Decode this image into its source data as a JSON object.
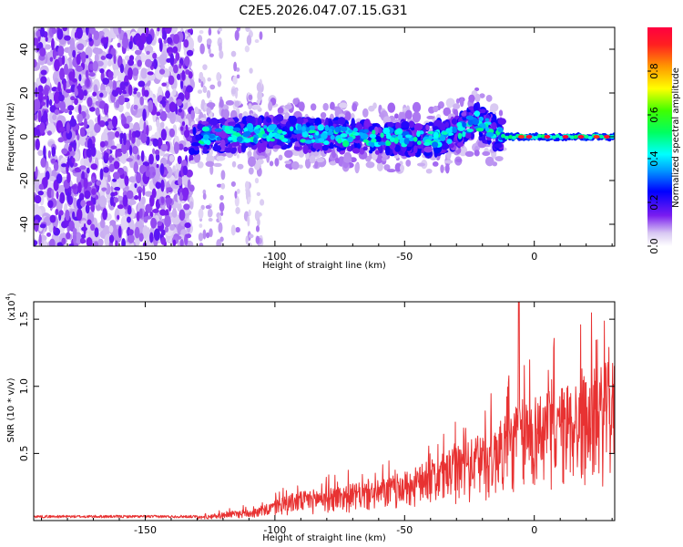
{
  "title": "C2E5.2026.047.07.15.G31",
  "chart_data": [
    {
      "type": "heatmap",
      "xlabel": "Height of straight line (km)",
      "ylabel": "Frequency (Hz)",
      "xlim": [
        -193,
        31
      ],
      "ylim": [
        -50,
        50
      ],
      "x_ticks": [
        -150,
        -100,
        -50,
        0
      ],
      "x_tick_labels": [
        "-150",
        "-100",
        "-50",
        "0"
      ],
      "y_ticks": [
        -40,
        -20,
        0,
        20,
        40
      ],
      "y_tick_labels": [
        "-40",
        "-20",
        "0",
        "20",
        "40"
      ],
      "colorbar": {
        "label": "Normalized spectral amplitude",
        "range": [
          0,
          1
        ],
        "ticks": [
          0,
          0.2,
          0.4,
          0.6,
          0.8
        ],
        "tick_labels": [
          "0.0",
          "0.2",
          "0.4",
          "0.6",
          "0.8"
        ],
        "colormap": "rainbow (white-violet-blue-cyan-green-yellow-orange-red)"
      },
      "signal_track": [
        {
          "x": -130,
          "y": 0
        },
        {
          "x": -100,
          "y": 2
        },
        {
          "x": -70,
          "y": 0
        },
        {
          "x": -40,
          "y": -1
        },
        {
          "x": -30,
          "y": 1
        },
        {
          "x": -23,
          "y": 8
        },
        {
          "x": -15,
          "y": 2
        },
        {
          "x": -10,
          "y": 0
        },
        {
          "x": 30,
          "y": 0
        }
      ],
      "grid": false
    },
    {
      "type": "line",
      "xlabel": "Height of straight line (km)",
      "ylabel": "SNR (10 * v/v)",
      "multiplier_label": "(x10",
      "multiplier_exp": "4",
      "multiplier_close": ")",
      "xlim": [
        -193,
        31
      ],
      "ylim": [
        0,
        1.63
      ],
      "x_ticks": [
        -150,
        -100,
        -50,
        0
      ],
      "x_tick_labels": [
        "-150",
        "-100",
        "-50",
        "0"
      ],
      "y_ticks": [
        0.5,
        1.0,
        1.5
      ],
      "y_tick_labels": [
        "0.5",
        "1.0",
        "1.5"
      ],
      "series_color": "#e83232",
      "envelope": [
        {
          "x": -193,
          "y": 0.03
        },
        {
          "x": -130,
          "y": 0.03
        },
        {
          "x": -120,
          "y": 0.06
        },
        {
          "x": -105,
          "y": 0.1
        },
        {
          "x": -95,
          "y": 0.2
        },
        {
          "x": -80,
          "y": 0.25
        },
        {
          "x": -60,
          "y": 0.3
        },
        {
          "x": -45,
          "y": 0.4
        },
        {
          "x": -35,
          "y": 0.5
        },
        {
          "x": -25,
          "y": 0.6
        },
        {
          "x": -15,
          "y": 0.7
        },
        {
          "x": -8,
          "y": 0.85
        },
        {
          "x": -5,
          "y": 0.9
        },
        {
          "x": 0,
          "y": 0.95
        },
        {
          "x": 10,
          "y": 1.0
        },
        {
          "x": 20,
          "y": 1.1
        },
        {
          "x": 30,
          "y": 1.2
        }
      ],
      "peak": {
        "x": -6,
        "y": 1.63
      },
      "grid": false
    }
  ]
}
